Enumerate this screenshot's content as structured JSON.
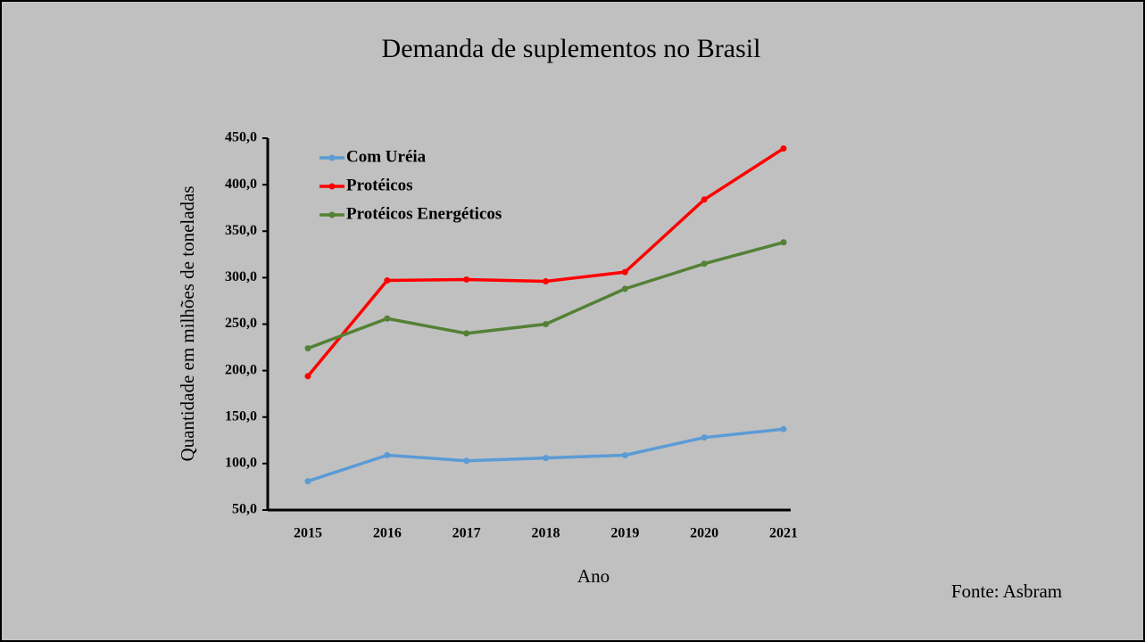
{
  "chart_data": {
    "type": "line",
    "title": "Demanda de suplementos no Brasil",
    "xlabel": "Ano",
    "ylabel": "Quantidade em milhões de toneladas",
    "source": "Fonte: Asbram",
    "categories": [
      "2015",
      "2016",
      "2017",
      "2018",
      "2019",
      "2020",
      "2021"
    ],
    "series": [
      {
        "name": "Com Uréia",
        "color": "#5b9bd5",
        "values": [
          81,
          109,
          103,
          106,
          109,
          128,
          137
        ]
      },
      {
        "name": "Protéicos",
        "color": "#ff0000",
        "values": [
          194,
          297,
          298,
          296,
          306,
          384,
          439
        ]
      },
      {
        "name": "Protéicos Energéticos",
        "color": "#538135",
        "values": [
          224,
          256,
          240,
          250,
          288,
          315,
          338
        ]
      }
    ],
    "ylim": [
      50,
      450
    ],
    "yticks": [
      {
        "value": 50,
        "label": "50,0"
      },
      {
        "value": 100,
        "label": "100,0"
      },
      {
        "value": 150,
        "label": "150,0"
      },
      {
        "value": 200,
        "label": "200,0"
      },
      {
        "value": 250,
        "label": "250,0"
      },
      {
        "value": 300,
        "label": "300,0"
      },
      {
        "value": 350,
        "label": "350,0"
      },
      {
        "value": 400,
        "label": "400,0"
      },
      {
        "value": 450,
        "label": "450,0"
      }
    ],
    "legend": "upper left",
    "grid": false
  }
}
